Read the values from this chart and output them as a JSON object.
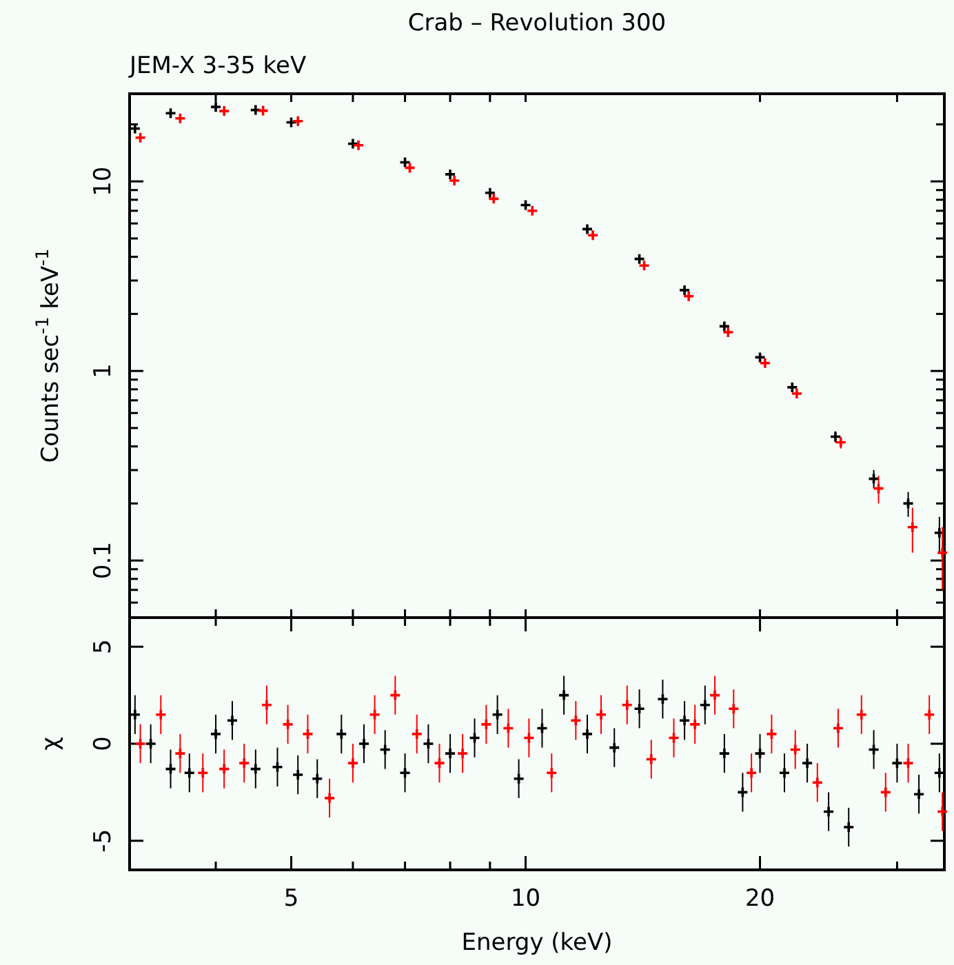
{
  "chart_data": [
    {
      "type": "scatter",
      "title": "Crab – Revolution 300",
      "subtitle": "JEM-X  3-35 keV",
      "ylabel": "Counts sec$^{-1}$ keV$^{-1}$",
      "log": "xy",
      "marker": "cross",
      "tick_labels": "y",
      "xlim": [
        3.1,
        34.5
      ],
      "xticks": [
        {
          "value": 4,
          "label": null
        },
        {
          "value": 5,
          "label": null
        },
        {
          "value": 6,
          "label": null
        },
        {
          "value": 7,
          "label": null
        },
        {
          "value": 8,
          "label": null
        },
        {
          "value": 9,
          "label": null
        },
        {
          "value": 10,
          "label": null
        },
        {
          "value": 20,
          "label": null
        },
        {
          "value": 30,
          "label": null
        }
      ],
      "ylim": [
        0.05,
        29
      ],
      "yticks": [
        {
          "value": 0.06,
          "label": null
        },
        {
          "value": 0.07,
          "label": null
        },
        {
          "value": 0.08,
          "label": null
        },
        {
          "value": 0.09,
          "label": null
        },
        0.1,
        {
          "value": 0.2,
          "label": null
        },
        {
          "value": 0.3,
          "label": null
        },
        {
          "value": 0.4,
          "label": null
        },
        {
          "value": 0.5,
          "label": null
        },
        {
          "value": 0.6,
          "label": null
        },
        {
          "value": 0.7,
          "label": null
        },
        {
          "value": 0.8,
          "label": null
        },
        {
          "value": 0.9,
          "label": null
        },
        1,
        {
          "value": 2,
          "label": null
        },
        {
          "value": 3,
          "label": null
        },
        {
          "value": 4,
          "label": null
        },
        {
          "value": 5,
          "label": null
        },
        {
          "value": 6,
          "label": null
        },
        {
          "value": 7,
          "label": null
        },
        {
          "value": 8,
          "label": null
        },
        {
          "value": 9,
          "label": null
        },
        10,
        {
          "value": 20,
          "label": null
        }
      ],
      "x": [
        3.15,
        3.5,
        4,
        4.5,
        5,
        6,
        7,
        8,
        9,
        10,
        12,
        14,
        16,
        18,
        20,
        22,
        25,
        28,
        31,
        34
      ],
      "series": [
        {
          "color": "#000000",
          "values": [
            19,
            22.9,
            24.7,
            23.8,
            20.5,
            15.8,
            12.6,
            10.9,
            8.7,
            7.5,
            5.6,
            3.9,
            2.67,
            1.72,
            1.18,
            0.82,
            0.45,
            0.27,
            0.2,
            0.14
          ],
          "errors": [
            null,
            null,
            null,
            null,
            null,
            null,
            null,
            null,
            null,
            null,
            null,
            null,
            null,
            null,
            null,
            0.03,
            0.03,
            0.03,
            0.03,
            0.03
          ]
        },
        {
          "color": "#ff0000",
          "x": [
            3.2,
            3.6,
            4.1,
            4.6,
            5.1,
            6.1,
            7.1,
            8.1,
            9.1,
            10.2,
            12.2,
            14.2,
            16.2,
            18.2,
            20.3,
            22.3,
            25.4,
            28.4,
            31.4,
            34.3
          ],
          "values": [
            17,
            21.5,
            23.5,
            23.6,
            20.8,
            15.5,
            11.8,
            10.1,
            8.1,
            7,
            5.2,
            3.6,
            2.48,
            1.6,
            1.1,
            0.76,
            0.42,
            0.24,
            0.15,
            0.11
          ],
          "errors": [
            null,
            null,
            null,
            null,
            null,
            null,
            null,
            null,
            null,
            null,
            null,
            null,
            null,
            null,
            null,
            0.03,
            0.03,
            0.04,
            0.04,
            0.04
          ]
        }
      ]
    },
    {
      "type": "scatter",
      "xlabel": "Energy (keV)",
      "ylabel": "χ",
      "log": "x",
      "marker": "cross",
      "xlim": [
        3.1,
        34.5
      ],
      "xticks": [
        {
          "value": 4,
          "label": null
        },
        5,
        {
          "value": 6,
          "label": null
        },
        {
          "value": 7,
          "label": null
        },
        {
          "value": 8,
          "label": null
        },
        {
          "value": 9,
          "label": null
        },
        10,
        20,
        {
          "value": 30,
          "label": null
        }
      ],
      "ylim": [
        -6.5,
        6.5
      ],
      "yticks": [
        -5,
        0,
        5
      ],
      "x": [
        3.15,
        3.3,
        3.5,
        3.7,
        4.0,
        4.2,
        4.5,
        4.8,
        5.1,
        5.4,
        5.8,
        6.2,
        6.6,
        7.0,
        7.5,
        8.0,
        8.6,
        9.2,
        9.8,
        10.5,
        11.2,
        12,
        13,
        14,
        15,
        16,
        17,
        18,
        19,
        20,
        21.5,
        23,
        24.5,
        26,
        28,
        30,
        32,
        34
      ],
      "series": [
        {
          "color": "#000000",
          "values": [
            1.5,
            0,
            -1.3,
            -1.5,
            0.5,
            1.2,
            -1.3,
            -1.2,
            -1.6,
            -1.8,
            0.5,
            0,
            -0.3,
            -1.5,
            0,
            -0.5,
            0.3,
            1.5,
            -1.8,
            0.8,
            2.5,
            0.5,
            -0.2,
            1.8,
            2.3,
            1.2,
            2,
            -0.5,
            -2.5,
            -0.5,
            -1.5,
            -1,
            -3.5,
            -4.3,
            -0.3,
            -1,
            -2.6,
            -1.5
          ],
          "errors": [
            1,
            1,
            1,
            1,
            1,
            1,
            1,
            1,
            1,
            1,
            1,
            1,
            1,
            1,
            1,
            1,
            1,
            1,
            1,
            1,
            1,
            1,
            1,
            1,
            1,
            1,
            1,
            1,
            1,
            1,
            1,
            1,
            1,
            1,
            1,
            1,
            1,
            1
          ]
        },
        {
          "color": "#ff0000",
          "x": [
            3.2,
            3.4,
            3.6,
            3.85,
            4.1,
            4.35,
            4.65,
            4.95,
            5.25,
            5.6,
            6.0,
            6.4,
            6.8,
            7.25,
            7.75,
            8.3,
            8.9,
            9.5,
            10.1,
            10.8,
            11.6,
            12.5,
            13.5,
            14.5,
            15.5,
            16.5,
            17.5,
            18.5,
            19.5,
            20.7,
            22.2,
            23.7,
            25.2,
            27,
            29,
            31,
            33,
            34.3
          ],
          "values": [
            0,
            1.5,
            -0.5,
            -1.5,
            -1.3,
            -1,
            2,
            1,
            0.5,
            -2.8,
            -1,
            1.5,
            2.5,
            0.5,
            -1,
            -0.5,
            1,
            0.8,
            0.3,
            -1.5,
            1.2,
            1.5,
            2,
            -0.8,
            0.3,
            1,
            2.5,
            1.8,
            -1.5,
            0.5,
            -0.3,
            -2,
            0.8,
            1.5,
            -2.5,
            -1,
            1.5,
            -3.5
          ],
          "errors": [
            1,
            1,
            1,
            1,
            1,
            1,
            1,
            1,
            1,
            1,
            1,
            1,
            1,
            1,
            1,
            1,
            1,
            1,
            1,
            1,
            1,
            1,
            1,
            1,
            1,
            1,
            1,
            1,
            1,
            1,
            1,
            1,
            1,
            1,
            1,
            1,
            1,
            1
          ]
        }
      ]
    }
  ]
}
